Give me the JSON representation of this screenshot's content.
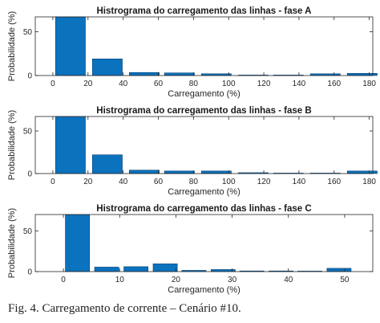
{
  "caption": "Fig. 4. Carregamento de corrente – Cenário #10.",
  "colors": {
    "bar_fill": "#0b72bd",
    "bar_edge": "#0a3f6e",
    "axis": "#262626"
  },
  "chart_data": [
    {
      "type": "bar",
      "title": "Histrograma do carregamento das linhas - fase A",
      "xlabel": "Carregamento (%)",
      "ylabel": "Probabilidade (%)",
      "xlim": [
        -10,
        182
      ],
      "ylim": [
        0,
        67
      ],
      "xticks": [
        0,
        20,
        40,
        60,
        80,
        100,
        120,
        140,
        160,
        180
      ],
      "yticks": [
        0,
        50
      ],
      "bar_width": 17,
      "x": [
        10,
        31,
        52,
        72,
        93,
        114,
        134,
        155,
        176
      ],
      "values": [
        67,
        19,
        3.5,
        3,
        2,
        0.3,
        0.3,
        2,
        2.5
      ]
    },
    {
      "type": "bar",
      "title": "Histrograma do carregamento das linhas - fase B",
      "xlabel": "Carregamento (%)",
      "ylabel": "Probabilidade (%)",
      "xlim": [
        -10,
        182
      ],
      "ylim": [
        0,
        67
      ],
      "xticks": [
        0,
        20,
        40,
        60,
        80,
        100,
        120,
        140,
        160,
        180
      ],
      "yticks": [
        0,
        50
      ],
      "bar_width": 17,
      "x": [
        10,
        31,
        52,
        72,
        93,
        114,
        134,
        155,
        176
      ],
      "values": [
        67,
        22,
        4,
        3,
        3,
        1,
        0.2,
        0.2,
        3
      ]
    },
    {
      "type": "bar",
      "title": "Histrograma do carregamento das linhas - fase C",
      "xlabel": "Carregamento (%)",
      "ylabel": "Probabilidade (%)",
      "xlim": [
        -5,
        55
      ],
      "ylim": [
        0,
        70
      ],
      "xticks": [
        0,
        10,
        20,
        30,
        40,
        50
      ],
      "yticks": [
        0,
        50
      ],
      "bar_width": 4.3,
      "x": [
        2.5,
        7.7,
        12.9,
        18.1,
        23.2,
        28.4,
        33.5,
        38.7,
        43.8,
        49.0
      ],
      "values": [
        70,
        5.5,
        6,
        9.5,
        1.5,
        2.5,
        0.8,
        0.8,
        0.3,
        4
      ]
    }
  ]
}
